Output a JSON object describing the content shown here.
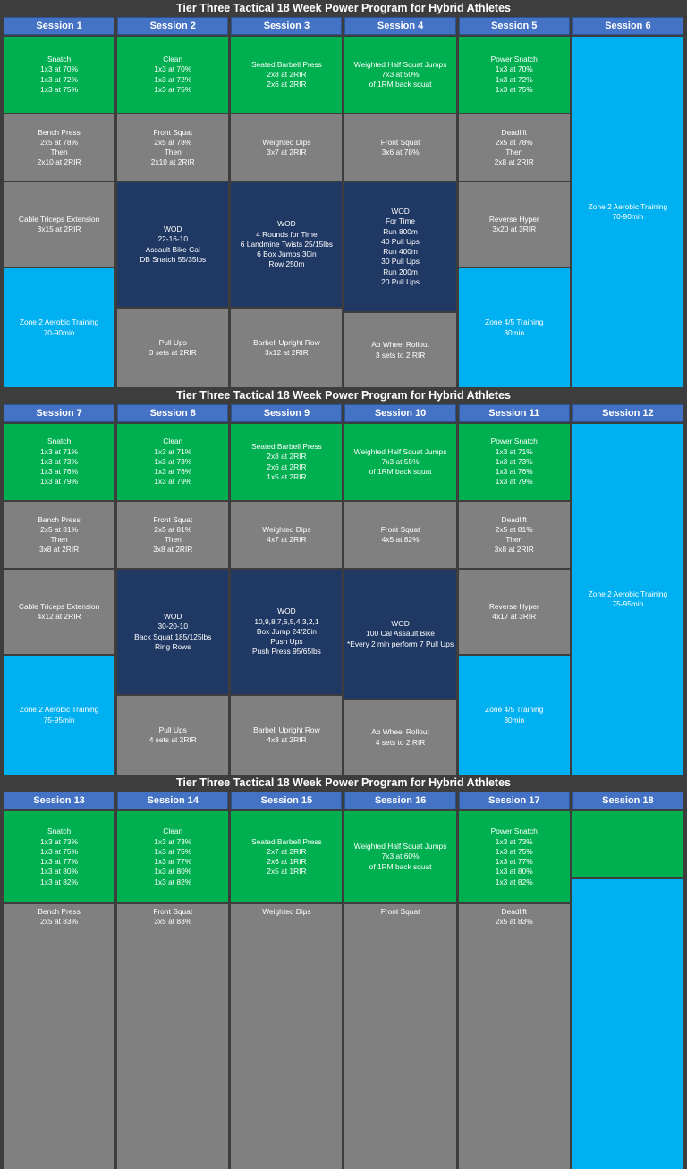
{
  "palette": {
    "background": "#3d3d3d",
    "header_blue": "#4472C4",
    "green": "#00B050",
    "gray": "#808080",
    "navy": "#1F3864",
    "cyan": "#00B0F0",
    "text": "#ffffff"
  },
  "sections": [
    {
      "title": "Tier Three Tactical 18 Week Power Program for Hybrid Athletes",
      "columns": [
        {
          "header": "Session 1",
          "cells": [
            {
              "color": "green",
              "lines": [
                "Snatch",
                "1x3 at 70%",
                "1x3 at 72%",
                "1x3 at 75%"
              ]
            },
            {
              "color": "gray",
              "lines": [
                "Bench Press",
                "2x5 at 78%",
                "Then",
                "2x10 at 2RIR"
              ]
            },
            {
              "color": "gray",
              "lines": [
                "Cable Triceps Extension",
                "3x15 at 2RIR"
              ]
            },
            {
              "color": "cyan",
              "lines": [
                "Zone 2 Aerobic Training",
                "70-90min"
              ]
            }
          ]
        },
        {
          "header": "Session 2",
          "cells": [
            {
              "color": "green",
              "lines": [
                "Clean",
                "1x3 at 70%",
                "1x3 at 72%",
                "1x3 at 75%"
              ]
            },
            {
              "color": "gray",
              "lines": [
                "Front Squat",
                "2x5 at 78%",
                "Then",
                "2x10 at 2RIR"
              ]
            },
            {
              "color": "navy",
              "lines": [
                "WOD",
                "22-16-10",
                "Assault Bike Cal",
                "DB Snatch 55/35lbs"
              ]
            },
            {
              "color": "gray",
              "lines": [
                "Pull Ups",
                "3 sets at 2RIR"
              ]
            }
          ]
        },
        {
          "header": "Session 3",
          "cells": [
            {
              "color": "green",
              "lines": [
                "Seated Barbell Press",
                "2x8 at 2RIR",
                "2x6 at 2RIR"
              ]
            },
            {
              "color": "gray",
              "lines": [
                "Weighted Dips",
                "3x7 at 2RIR"
              ]
            },
            {
              "color": "navy",
              "lines": [
                "WOD",
                "4 Rounds for Time",
                "6 Landmine Twists 25/15lbs",
                "6 Box Jumps 30in",
                "Row 250m"
              ]
            },
            {
              "color": "gray",
              "lines": [
                "Barbell Upright Row",
                "3x12 at 2RIR"
              ]
            }
          ]
        },
        {
          "header": "Session 4",
          "cells": [
            {
              "color": "green",
              "lines": [
                "Weighted Half Squat Jumps",
                "7x3 at 50%",
                "of 1RM back squat"
              ]
            },
            {
              "color": "gray",
              "lines": [
                "Front Squat",
                "3x6 at 78%"
              ]
            },
            {
              "color": "navy",
              "lines": [
                "WOD",
                "For Time",
                "Run 800m",
                "40 Pull Ups",
                "Run 400m",
                "30 Pull Ups",
                "Run 200m",
                "20 Pull Ups"
              ]
            },
            {
              "color": "gray",
              "lines": [
                "Ab Wheel Rollout",
                "3 sets to 2 RIR"
              ]
            }
          ]
        },
        {
          "header": "Session 5",
          "cells": [
            {
              "color": "green",
              "lines": [
                "Power Snatch",
                "1x3 at 70%",
                "1x3 at 72%",
                "1x3 at 75%"
              ]
            },
            {
              "color": "gray",
              "lines": [
                "Deadlift",
                "2x5 at 78%",
                "Then",
                "2x8 at 2RIR"
              ]
            },
            {
              "color": "gray",
              "lines": [
                "Reverse Hyper",
                "3x20 at 3RIR"
              ]
            },
            {
              "color": "cyan",
              "lines": [
                "Zone 4/5 Training",
                "30min"
              ]
            }
          ]
        },
        {
          "header": "Session 6",
          "cells": [
            {
              "color": "cyan",
              "lines": [
                "Zone 2 Aerobic Training",
                "70-90min"
              ]
            }
          ]
        }
      ]
    },
    {
      "title": "Tier Three Tactical 18 Week Power Program for Hybrid Athletes",
      "columns": [
        {
          "header": "Session 7",
          "cells": [
            {
              "color": "green",
              "lines": [
                "Snatch",
                "1x3 at 71%",
                "1x3 at 73%",
                "1x3 at 76%",
                "1x3 at 79%"
              ]
            },
            {
              "color": "gray",
              "lines": [
                "Bench Press",
                "2x5 at 81%",
                "Then",
                "3x8 at 2RIR"
              ]
            },
            {
              "color": "gray",
              "lines": [
                "Cable Triceps Extension",
                "4x12 at 2RIR"
              ]
            },
            {
              "color": "cyan",
              "lines": [
                "Zone 2 Aerobic Training",
                "75-95min"
              ]
            }
          ]
        },
        {
          "header": "Session 8",
          "cells": [
            {
              "color": "green",
              "lines": [
                "Clean",
                "1x3 at 71%",
                "1x3 at 73%",
                "1x3 at 76%",
                "1x3 at 79%"
              ]
            },
            {
              "color": "gray",
              "lines": [
                "Front Squat",
                "2x5 at 81%",
                "Then",
                "3x8 at 2RIR"
              ]
            },
            {
              "color": "navy",
              "lines": [
                "WOD",
                "30-20-10",
                "Back Squat 185/125lbs",
                "Ring Rows"
              ]
            },
            {
              "color": "gray",
              "lines": [
                "Pull Ups",
                "4 sets at 2RIR"
              ]
            }
          ]
        },
        {
          "header": "Session 9",
          "cells": [
            {
              "color": "green",
              "lines": [
                "Seated Barbell Press",
                "2x8 at 2RIR",
                "2x6 at 2RIR",
                "1x5 at 2RIR"
              ]
            },
            {
              "color": "gray",
              "lines": [
                "Weighted Dips",
                "4x7 at 2RIR"
              ]
            },
            {
              "color": "navy",
              "lines": [
                "WOD",
                "10,9,8,7,6,5,4,3,2,1",
                "Box Jump 24/20in",
                "Push Ups",
                "Push Press 95/65lbs"
              ]
            },
            {
              "color": "gray",
              "lines": [
                "Barbell Upright Row",
                "4x8 at 2RIR"
              ]
            }
          ]
        },
        {
          "header": "Session 10",
          "cells": [
            {
              "color": "green",
              "lines": [
                "Weighted Half Squat Jumps",
                "7x3 at 55%",
                "of 1RM back squat"
              ]
            },
            {
              "color": "gray",
              "lines": [
                "Front Squat",
                "4x5 at 82%"
              ]
            },
            {
              "color": "navy",
              "lines": [
                "WOD",
                "100 Cal Assault Bike",
                "*Every 2 min perform 7 Pull Ups"
              ]
            },
            {
              "color": "gray",
              "lines": [
                "Ab Wheel Rollout",
                "4 sets to 2 RIR"
              ]
            }
          ]
        },
        {
          "header": "Session 11",
          "cells": [
            {
              "color": "green",
              "lines": [
                "Power Snatch",
                "1x3 at 71%",
                "1x3 at 73%",
                "1x3 at 76%",
                "1x3 at 79%"
              ]
            },
            {
              "color": "gray",
              "lines": [
                "Deadlift",
                "2x5 at 81%",
                "Then",
                "3x8 at 2RIR"
              ]
            },
            {
              "color": "gray",
              "lines": [
                "Reverse Hyper",
                "4x17 at 3RIR"
              ]
            },
            {
              "color": "cyan",
              "lines": [
                "Zone 4/5 Training",
                "30min"
              ]
            }
          ]
        },
        {
          "header": "Session 12",
          "cells": [
            {
              "color": "cyan",
              "lines": [
                "Zone 2 Aerobic Training",
                "75-95min"
              ]
            }
          ]
        }
      ]
    },
    {
      "title": "Tier Three Tactical 18 Week Power Program for Hybrid Athletes",
      "columns": [
        {
          "header": "Session 13",
          "cells": [
            {
              "color": "green",
              "lines": [
                "Snatch",
                "1x3 at 73%",
                "1x3 at 75%",
                "1x3 at 77%",
                "1x3 at 80%",
                "1x3 at 82%"
              ]
            },
            {
              "color": "gray",
              "lines": [
                "Bench Press",
                "2x5 at 83%"
              ]
            }
          ]
        },
        {
          "header": "Session 14",
          "cells": [
            {
              "color": "green",
              "lines": [
                "Clean",
                "1x3 at 73%",
                "1x3 at 75%",
                "1x3 at 77%",
                "1x3 at 80%",
                "1x3 at 82%"
              ]
            },
            {
              "color": "gray",
              "lines": [
                "Front Squat",
                "3x5 at 83%"
              ]
            }
          ]
        },
        {
          "header": "Session 15",
          "cells": [
            {
              "color": "green",
              "lines": [
                "Seated Barbell Press",
                "2x7 at 2RIR",
                "2x6 at 1RIR",
                "2x5 at 1RIR"
              ]
            },
            {
              "color": "gray",
              "lines": [
                "Weighted Dips"
              ]
            }
          ]
        },
        {
          "header": "Session 16",
          "cells": [
            {
              "color": "green",
              "lines": [
                "Weighted Half Squat Jumps",
                "7x3 at 60%",
                "of 1RM back squat"
              ]
            },
            {
              "color": "gray",
              "lines": [
                "Front Squat"
              ]
            }
          ]
        },
        {
          "header": "Session 17",
          "cells": [
            {
              "color": "green",
              "lines": [
                "Power Snatch",
                "1x3 at 73%",
                "1x3 at 75%",
                "1x3 at 77%",
                "1x3 at 80%",
                "1x3 at 82%"
              ]
            },
            {
              "color": "gray",
              "lines": [
                "Deadlift",
                "2x5 at 83%"
              ]
            }
          ]
        },
        {
          "header": "Session 18",
          "cells": [
            {
              "color": "green",
              "lines": []
            },
            {
              "color": "cyan",
              "lines": []
            }
          ]
        }
      ]
    }
  ]
}
